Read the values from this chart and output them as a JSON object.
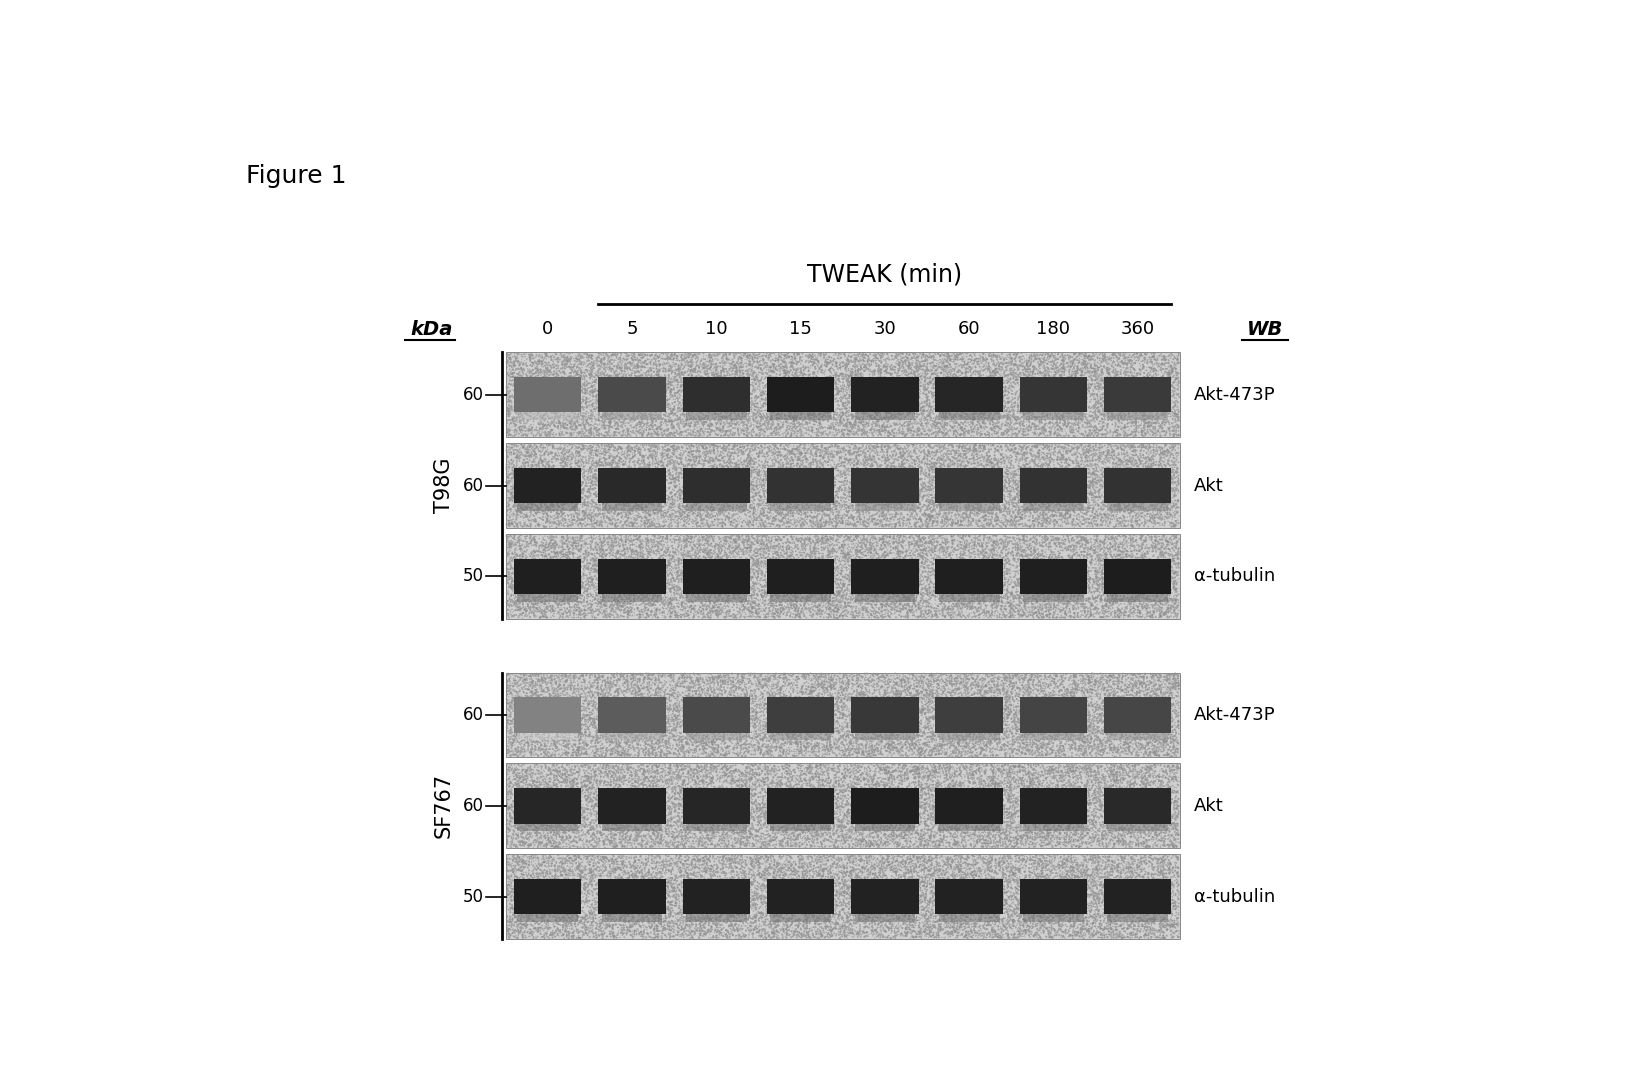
{
  "figure_label": "Figure 1",
  "title_tweak": "TWEAK (min)",
  "col_header_kda": "kDa",
  "col_header_wb": "WB",
  "time_points": [
    "0",
    "5",
    "10",
    "15",
    "30",
    "60",
    "180",
    "360"
  ],
  "cell_lines": [
    "T98G",
    "SF767"
  ],
  "bands": {
    "T98G": [
      {
        "kda": "60",
        "label": "Akt-473P"
      },
      {
        "kda": "60",
        "label": "Akt"
      },
      {
        "kda": "50",
        "label": "α-tubulin"
      }
    ],
    "SF767": [
      {
        "kda": "60",
        "label": "Akt-473P"
      },
      {
        "kda": "60",
        "label": "Akt"
      },
      {
        "kda": "50",
        "label": "α-tubulin"
      }
    ]
  },
  "intensities": {
    "T98G": {
      "Akt-473P": [
        0.25,
        0.55,
        0.78,
        0.92,
        0.88,
        0.85,
        0.72,
        0.68
      ],
      "Akt": [
        0.88,
        0.82,
        0.78,
        0.75,
        0.73,
        0.72,
        0.75,
        0.75
      ],
      "α-tubulin": [
        0.9,
        0.9,
        0.9,
        0.9,
        0.9,
        0.9,
        0.9,
        0.92
      ]
    },
    "SF767": {
      "Akt-473P": [
        0.08,
        0.4,
        0.55,
        0.65,
        0.7,
        0.65,
        0.6,
        0.58
      ],
      "Akt": [
        0.85,
        0.88,
        0.85,
        0.88,
        0.92,
        0.9,
        0.88,
        0.82
      ],
      "α-tubulin": [
        0.9,
        0.9,
        0.88,
        0.88,
        0.88,
        0.88,
        0.88,
        0.88
      ]
    }
  },
  "bg_color": "#ffffff",
  "panel_bg": "#c8c8c8",
  "stipple_color": "#b0b0b0",
  "band_dark": "#111111"
}
